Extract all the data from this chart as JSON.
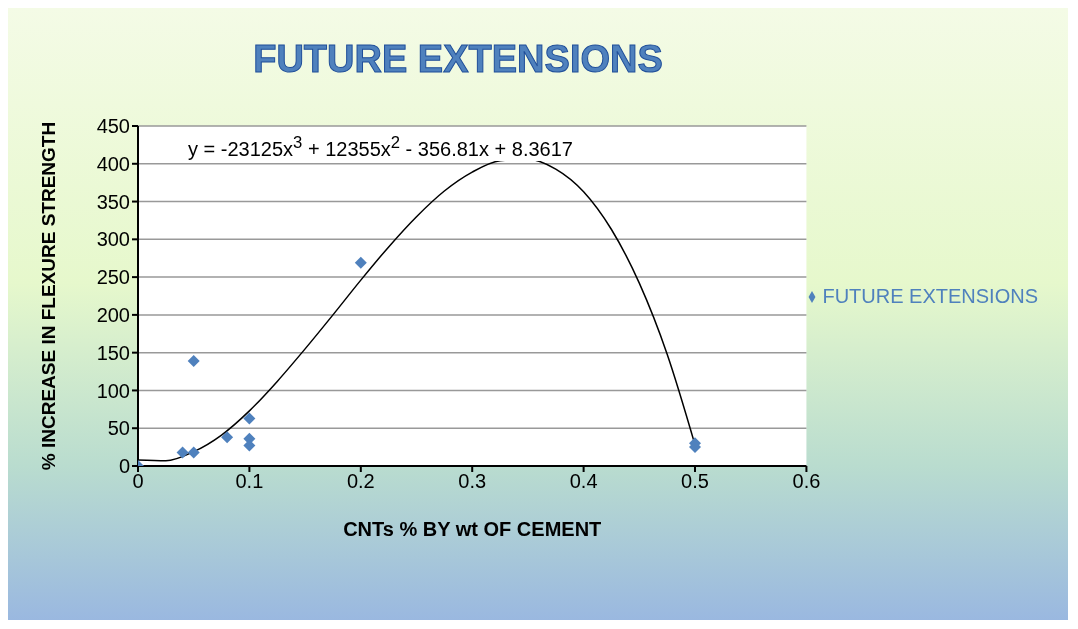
{
  "chart_data": {
    "type": "scatter",
    "title": "FUTURE EXTENSIONS",
    "xlabel": "CNTs % BY wt OF CEMENT",
    "ylabel": "% INCREASE IN FLEXURE STRENGTH",
    "annotations": [
      "y = -23125x$^{3}$ + 12355x$^{2}$ - 356.81x + 8.3617"
    ],
    "x": [
      0,
      0.04,
      0.05,
      0.05,
      0.08,
      0.1,
      0.1,
      0.1,
      0.2,
      0.5,
      0.5
    ],
    "series": [
      {
        "name": "FUTURE EXTENSIONS",
        "color": "#4f81bd",
        "marker": "diamond",
        "values": [
          0,
          18,
          18,
          139,
          38,
          63,
          36,
          27,
          269,
          30,
          25
        ]
      },
      {
        "type": "line",
        "color": "#000000",
        "marker": "none",
        "line_style": "solid",
        "x": [
          0,
          0.025,
          0.05,
          0.075,
          0.1,
          0.125,
          0.15,
          0.175,
          0.2,
          0.225,
          0.25,
          0.275,
          0.3,
          0.325,
          0.35,
          0.375,
          0.4,
          0.425,
          0.45,
          0.475,
          0.5
        ],
        "values": [
          8,
          7,
          19,
          41,
          73,
          112,
          155,
          200,
          246,
          290,
          330,
          364,
          389,
          404,
          406,
          393,
          363,
          313,
          242,
          148,
          28
        ]
      }
    ],
    "xlim": [
      0,
      0.6
    ],
    "xticks": [
      0,
      0.1,
      0.2,
      0.3,
      0.4,
      0.5,
      0.6
    ],
    "ylim": [
      0,
      450
    ],
    "yticks": [
      0,
      50,
      100,
      150,
      200,
      250,
      300,
      350,
      400,
      450
    ],
    "grid": "y",
    "legend": "right"
  }
}
